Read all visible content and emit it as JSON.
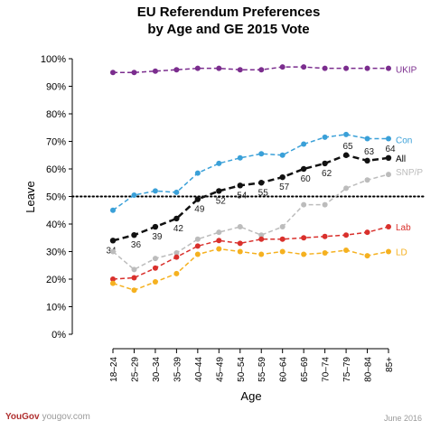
{
  "chart_data": {
    "type": "line",
    "title_line1": "EU Referendum Preferences",
    "title_line2": "by Age and GE 2015 Vote",
    "xlabel": "Age",
    "ylabel": "Leave",
    "ylim": [
      0,
      100
    ],
    "yticks": [
      "0%",
      "10%",
      "20%",
      "30%",
      "40%",
      "50%",
      "60%",
      "70%",
      "80%",
      "90%",
      "100%"
    ],
    "categories": [
      "18–24",
      "25–29",
      "30–34",
      "35–39",
      "40–44",
      "45–49",
      "50–54",
      "55–59",
      "60–64",
      "65–69",
      "70–74",
      "75–79",
      "80–84",
      "85+"
    ],
    "reference_line": 50,
    "series": [
      {
        "name": "UKIP",
        "color": "#7b2d8e",
        "values": [
          95,
          95,
          95.5,
          96,
          96.5,
          96.5,
          96,
          96,
          97,
          97,
          96.5,
          96.5,
          96.5,
          96.5
        ]
      },
      {
        "name": "Con",
        "color": "#3aa0d8",
        "values": [
          45,
          50.5,
          52,
          51.5,
          58.5,
          62,
          64,
          65.5,
          65,
          69,
          71.5,
          72.5,
          71,
          71
        ]
      },
      {
        "name": "All",
        "color": "#111111",
        "bold": true,
        "values": [
          34,
          36,
          39,
          42,
          49,
          52,
          54,
          55,
          57,
          60,
          62,
          65,
          63,
          64
        ],
        "value_labels": [
          "34",
          "36",
          "39",
          "42",
          "49",
          "52",
          "54",
          "55",
          "57",
          "60",
          "62",
          "65",
          "63",
          "64"
        ]
      },
      {
        "name": "SNP/P",
        "color": "#bcbcbc",
        "values": [
          30,
          23.5,
          27.5,
          29.5,
          34.5,
          37,
          39,
          36,
          39,
          47,
          47,
          53,
          56,
          58
        ]
      },
      {
        "name": "Lab",
        "color": "#d9302c",
        "values": [
          20,
          20.5,
          24,
          28,
          32,
          34,
          33,
          34.5,
          34.5,
          35,
          35.5,
          36,
          37,
          39
        ]
      },
      {
        "name": "LD",
        "color": "#f5b120",
        "values": [
          18.5,
          16,
          19,
          22,
          29,
          31,
          30,
          29,
          30,
          29,
          29.5,
          30.5,
          28.5,
          30
        ]
      }
    ]
  },
  "footer": {
    "brand": "YouGov",
    "site": "yougov.com",
    "date": "June 2016"
  }
}
